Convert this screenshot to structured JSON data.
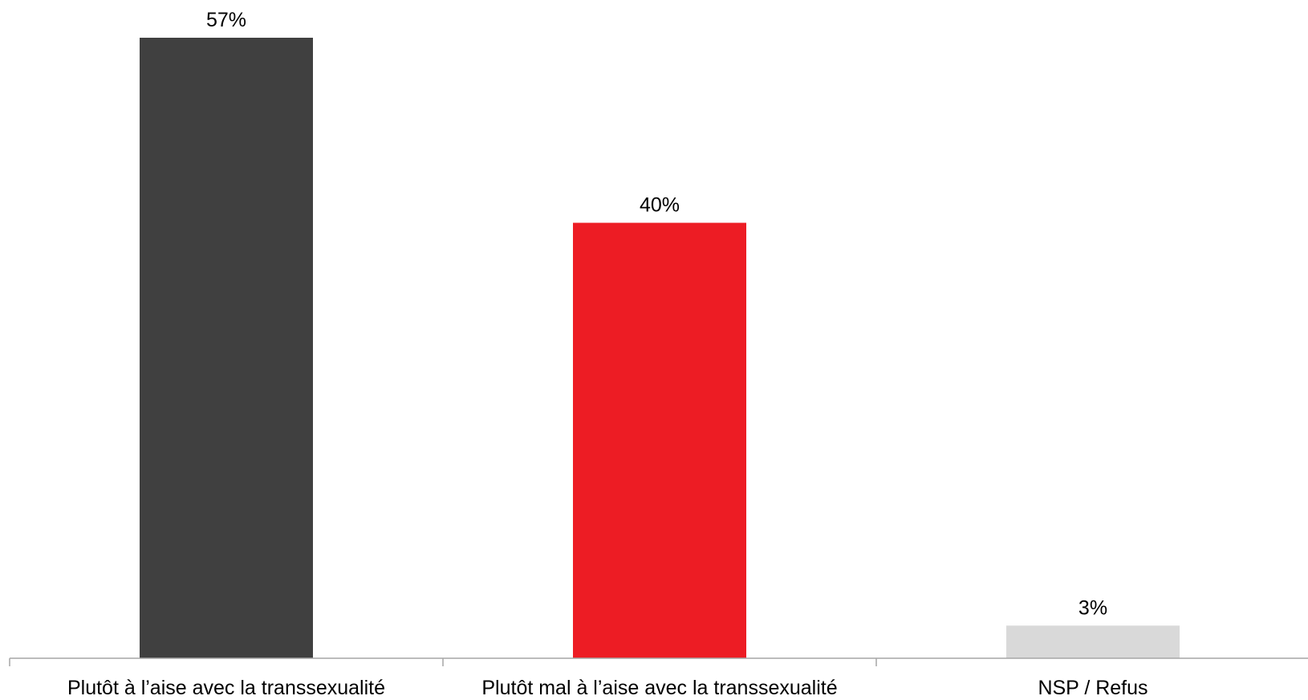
{
  "chart_data": {
    "type": "bar",
    "title": "",
    "xlabel": "",
    "ylabel": "",
    "categories": [
      "Plutôt à l’aise avec la transsexualité",
      "Plutôt mal à l’aise avec la transsexualité",
      "NSP / Refus"
    ],
    "values": [
      57,
      40,
      3
    ],
    "value_labels": [
      "57%",
      "40%",
      "3%"
    ],
    "colors": [
      "#404040",
      "#ed1c24",
      "#d9d9d9"
    ],
    "ylim": [
      0,
      57
    ],
    "grid": false,
    "legend": false
  }
}
